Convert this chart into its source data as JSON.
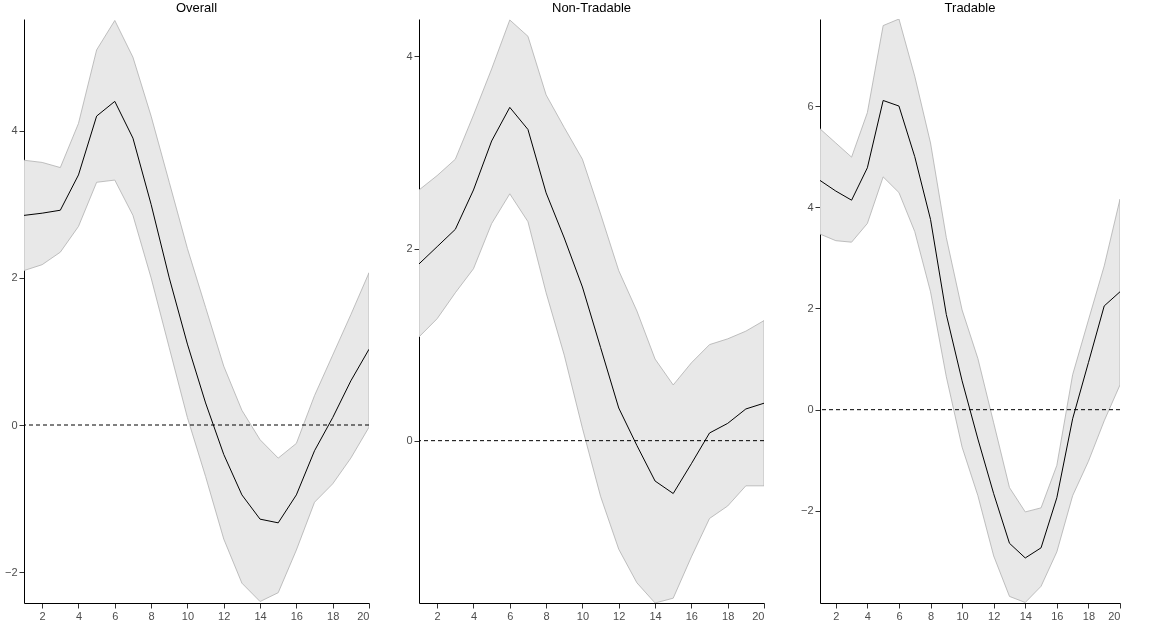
{
  "chart_data": [
    {
      "type": "line",
      "title": "Overall",
      "x": [
        1,
        2,
        3,
        4,
        5,
        6,
        7,
        8,
        9,
        10,
        11,
        12,
        13,
        14,
        15,
        16,
        17,
        18,
        19,
        20
      ],
      "xlim": [
        1,
        20
      ],
      "xticks": [
        2,
        4,
        6,
        8,
        10,
        12,
        14,
        16,
        18,
        20
      ],
      "ylim": [
        -2.42,
        5.52
      ],
      "yticks": [
        -2,
        0,
        2,
        4
      ],
      "grid": false,
      "marker": "none",
      "line_style": "solid",
      "series": [
        {
          "color": "#000000",
          "values": [
            2.85,
            2.88,
            2.92,
            3.4,
            4.2,
            4.4,
            3.9,
            3.0,
            2.0,
            1.1,
            0.3,
            -0.4,
            -0.95,
            -1.28,
            -1.33,
            -0.95,
            -0.35,
            0.1,
            0.6,
            1.03
          ],
          "lower": [
            2.1,
            2.18,
            2.35,
            2.7,
            3.3,
            3.33,
            2.85,
            2.0,
            1.05,
            0.1,
            -0.7,
            -1.55,
            -2.15,
            -2.4,
            -2.28,
            -1.7,
            -1.05,
            -0.8,
            -0.45,
            -0.03
          ],
          "upper": [
            3.6,
            3.57,
            3.5,
            4.1,
            5.1,
            5.5,
            5.0,
            4.2,
            3.3,
            2.4,
            1.6,
            0.8,
            0.2,
            -0.2,
            -0.45,
            -0.25,
            0.4,
            0.95,
            1.5,
            2.07
          ]
        }
      ],
      "ref_lines": [
        {
          "axis": "y",
          "value": 0,
          "color": "#000000",
          "line_style": "dashed"
        }
      ]
    },
    {
      "type": "line",
      "title": "Non-Tradable",
      "x": [
        1,
        2,
        3,
        4,
        5,
        6,
        7,
        8,
        9,
        10,
        11,
        12,
        13,
        14,
        15,
        16,
        17,
        18,
        19,
        20
      ],
      "xlim": [
        1,
        20
      ],
      "xticks": [
        2,
        4,
        6,
        8,
        10,
        12,
        14,
        16,
        18,
        20
      ],
      "ylim": [
        -1.69,
        4.39
      ],
      "yticks": [
        0,
        2,
        4
      ],
      "grid": false,
      "marker": "none",
      "line_style": "solid",
      "series": [
        {
          "color": "#000000",
          "values": [
            1.84,
            2.02,
            2.2,
            2.61,
            3.12,
            3.47,
            3.24,
            2.58,
            2.11,
            1.6,
            0.97,
            0.34,
            -0.05,
            -0.42,
            -0.55,
            -0.24,
            0.08,
            0.18,
            0.33,
            0.39
          ],
          "lower": [
            1.08,
            1.27,
            1.54,
            1.79,
            2.26,
            2.57,
            2.28,
            1.54,
            0.89,
            0.13,
            -0.58,
            -1.13,
            -1.48,
            -1.69,
            -1.64,
            -1.21,
            -0.81,
            -0.68,
            -0.47,
            -0.47
          ],
          "upper": [
            2.61,
            2.76,
            2.93,
            3.39,
            3.87,
            4.38,
            4.21,
            3.6,
            3.26,
            2.93,
            2.36,
            1.77,
            1.35,
            0.85,
            0.58,
            0.81,
            1.0,
            1.06,
            1.14,
            1.25
          ]
        }
      ],
      "ref_lines": [
        {
          "axis": "y",
          "value": 0,
          "color": "#000000",
          "line_style": "dashed"
        }
      ]
    },
    {
      "type": "line",
      "title": "Tradable",
      "x": [
        1,
        2,
        3,
        4,
        5,
        6,
        7,
        8,
        9,
        10,
        11,
        12,
        13,
        14,
        15,
        16,
        17,
        18,
        19,
        20
      ],
      "xlim": [
        1,
        20
      ],
      "xticks": [
        2,
        4,
        6,
        8,
        10,
        12,
        14,
        16,
        18,
        20
      ],
      "ylim": [
        -3.82,
        7.72
      ],
      "yticks": [
        -2,
        0,
        2,
        4,
        6
      ],
      "grid": false,
      "marker": "none",
      "line_style": "solid",
      "series": [
        {
          "color": "#000000",
          "values": [
            4.53,
            4.32,
            4.14,
            4.78,
            6.11,
            6.0,
            5.0,
            3.76,
            1.88,
            0.57,
            -0.58,
            -1.66,
            -2.64,
            -2.93,
            -2.73,
            -1.74,
            -0.18,
            0.93,
            2.05,
            2.33
          ],
          "lower": [
            3.47,
            3.34,
            3.31,
            3.68,
            4.6,
            4.29,
            3.52,
            2.33,
            0.65,
            -0.74,
            -1.7,
            -2.89,
            -3.69,
            -3.81,
            -3.49,
            -2.81,
            -1.7,
            -1.02,
            -0.22,
            0.49
          ],
          "upper": [
            5.55,
            5.27,
            4.99,
            5.87,
            7.59,
            7.72,
            6.59,
            5.27,
            3.4,
            1.97,
            1.01,
            -0.26,
            -1.54,
            -2.02,
            -1.94,
            -1.1,
            0.69,
            1.77,
            2.84,
            4.16
          ]
        }
      ],
      "ref_lines": [
        {
          "axis": "y",
          "value": 0,
          "color": "#000000",
          "line_style": "dashed"
        }
      ]
    }
  ]
}
